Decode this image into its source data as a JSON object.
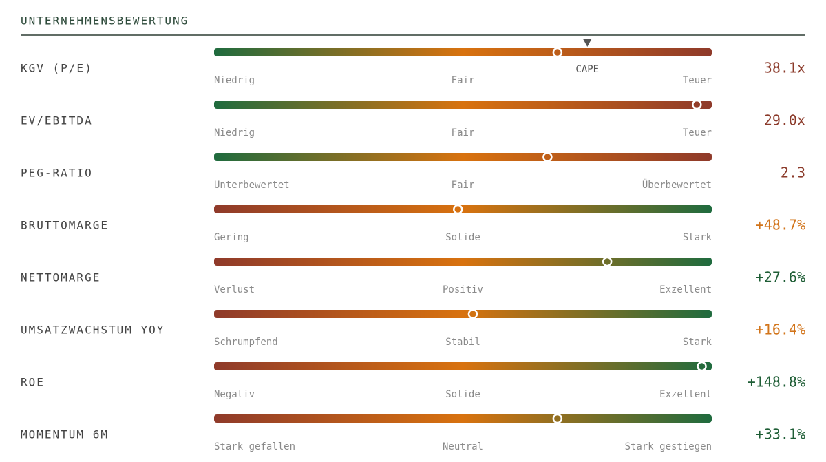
{
  "title": "UNTERNEHMENSBEWERTUNG",
  "scale": [
    0,
    100
  ],
  "rows": [
    {
      "label": "KGV (P/E)",
      "value": "38.1x",
      "value_color": "#8b3a2a",
      "colors": [
        "#1f6b3e",
        "#d8720f",
        "#8f3a2a"
      ],
      "scale_labels": [
        "Niedrig",
        "Fair",
        "Teuer"
      ],
      "position": 69,
      "reference": {
        "label": "CAPE",
        "position": 75
      }
    },
    {
      "label": "EV/EBITDA",
      "value": "29.0x",
      "value_color": "#8b3a2a",
      "colors": [
        "#1f6b3e",
        "#d8720f",
        "#8f3a2a"
      ],
      "scale_labels": [
        "Niedrig",
        "Fair",
        "Teuer"
      ],
      "position": 97
    },
    {
      "label": "PEG-RATIO",
      "value": "2.3",
      "value_color": "#8b3a2a",
      "colors": [
        "#1f6b3e",
        "#d8720f",
        "#8f3a2a"
      ],
      "scale_labels": [
        "Unterbewertet",
        "Fair",
        "Überbewertet"
      ],
      "position": 67
    },
    {
      "label": "BRUTTOMARGE",
      "value": "+48.7%",
      "value_color": "#d2741a",
      "colors": [
        "#8f3a2a",
        "#d8720f",
        "#1f6b3e"
      ],
      "scale_labels": [
        "Gering",
        "Solide",
        "Stark"
      ],
      "position": 49
    },
    {
      "label": "NETTOMARGE",
      "value": "+27.6%",
      "value_color": "#1f5e36",
      "colors": [
        "#8f3a2a",
        "#d8720f",
        "#1f6b3e"
      ],
      "scale_labels": [
        "Verlust",
        "Positiv",
        "Exzellent"
      ],
      "position": 79
    },
    {
      "label": "UMSATZWACHSTUM YOY",
      "value": "+16.4%",
      "value_color": "#d2741a",
      "colors": [
        "#8f3a2a",
        "#d8720f",
        "#1f6b3e"
      ],
      "scale_labels": [
        "Schrumpfend",
        "Stabil",
        "Stark"
      ],
      "position": 52
    },
    {
      "label": "ROE",
      "value": "+148.8%",
      "value_color": "#1f5e36",
      "colors": [
        "#8f3a2a",
        "#d8720f",
        "#1f6b3e"
      ],
      "scale_labels": [
        "Negativ",
        "Solide",
        "Exzellent"
      ],
      "position": 98
    },
    {
      "label": "MOMENTUM 6M",
      "value": "+33.1%",
      "value_color": "#1f5e36",
      "colors": [
        "#8f3a2a",
        "#d8720f",
        "#1f6b3e"
      ],
      "scale_labels": [
        "Stark gefallen",
        "Neutral",
        "Stark gestiegen"
      ],
      "position": 69
    }
  ]
}
